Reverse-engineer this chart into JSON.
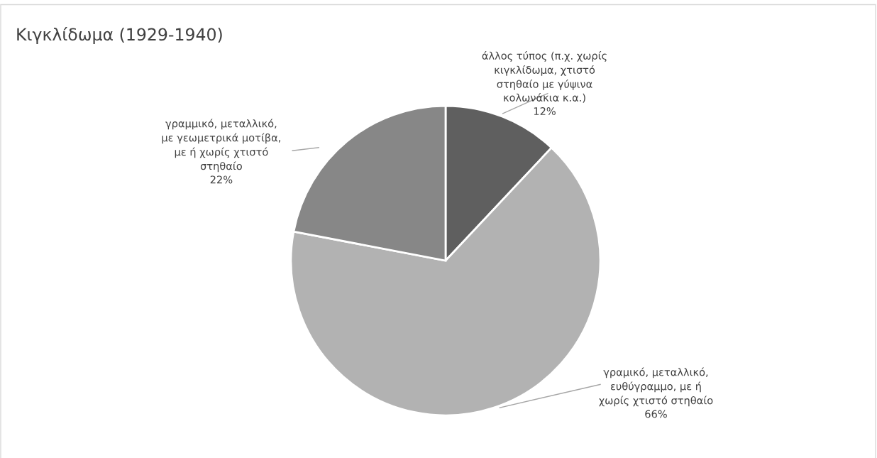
{
  "chart_data": {
    "type": "pie",
    "title": "Κιγκλίδωμα (1929-1940)",
    "categories": [
      "άλλος τύπος (π.χ. χωρίς\nκιγκλίδωμα, χτιστό\nστηθαίο με γύψινα\nκολωνάκια κ.α.)",
      "γραμικό, μεταλλικό,\nευθύγραμμο, με ή\nχωρίς χτιστό στηθαίο",
      "γραμμικό, μεταλλικό,\nμε γεωμετρικά μοτίβα,\nμε ή χωρίς χτιστό\nστηθαίο"
    ],
    "values": [
      12,
      66,
      22
    ],
    "colors": [
      "#5f5f5f",
      "#b2b2b2",
      "#878787"
    ],
    "value_labels": [
      "12%",
      "66%",
      "22%"
    ],
    "legend": false
  }
}
